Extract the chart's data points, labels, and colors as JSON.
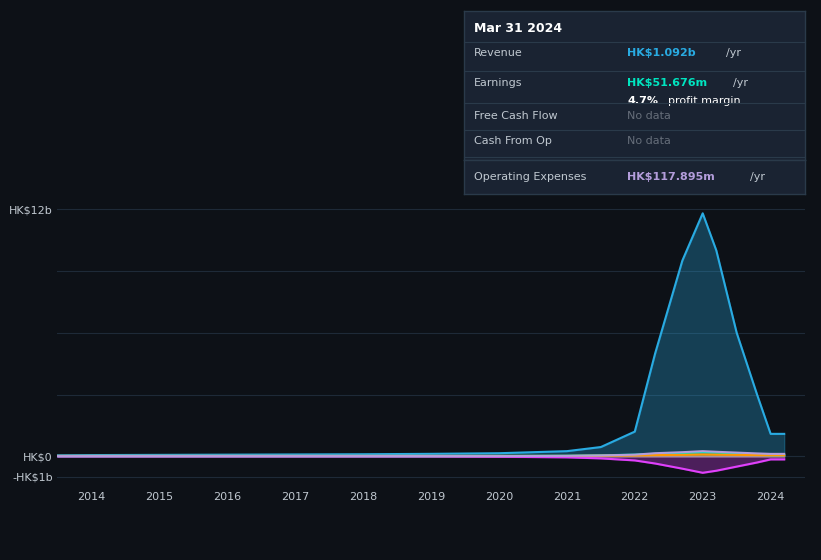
{
  "background_color": "#0d1117",
  "plot_bg_color": "#0d1117",
  "grid_color": "#1e2a38",
  "text_color": "#c0c8d0",
  "title_color": "#ffffff",
  "years": [
    2013.5,
    2014,
    2015,
    2016,
    2017,
    2018,
    2019,
    2020,
    2021,
    2021.5,
    2022,
    2022.3,
    2022.7,
    2023.0,
    2023.2,
    2023.5,
    2023.8,
    2024.0,
    2024.2
  ],
  "revenue": [
    0.05,
    0.06,
    0.07,
    0.08,
    0.09,
    0.1,
    0.12,
    0.15,
    0.25,
    0.45,
    1.2,
    5.0,
    9.5,
    11.8,
    10.0,
    6.0,
    3.0,
    1.09,
    1.09
  ],
  "earnings": [
    0.01,
    0.01,
    0.01,
    0.01,
    0.01,
    0.01,
    0.01,
    0.02,
    0.03,
    0.05,
    0.08,
    0.12,
    0.15,
    0.2,
    0.18,
    0.12,
    0.08,
    0.052,
    0.052
  ],
  "free_cash_flow": [
    0.0,
    0.0,
    0.0,
    0.0,
    0.0,
    0.0,
    0.0,
    -0.02,
    -0.05,
    -0.1,
    -0.2,
    -0.35,
    -0.6,
    -0.8,
    -0.7,
    -0.5,
    -0.3,
    -0.15,
    -0.15
  ],
  "cash_from_op": [
    0.02,
    0.02,
    0.02,
    0.02,
    0.02,
    0.02,
    0.02,
    0.02,
    0.02,
    0.03,
    0.04,
    0.06,
    0.07,
    0.09,
    0.08,
    0.07,
    0.06,
    0.05,
    0.05
  ],
  "operating_expenses": [
    0.01,
    0.01,
    0.01,
    0.01,
    0.01,
    0.01,
    0.01,
    0.01,
    0.02,
    0.04,
    0.08,
    0.15,
    0.2,
    0.25,
    0.22,
    0.18,
    0.14,
    0.118,
    0.118
  ],
  "revenue_color": "#29abe2",
  "earnings_color": "#00e5c0",
  "free_cash_flow_color": "#e040fb",
  "cash_from_op_color": "#ff9800",
  "operating_expenses_color": "#b39ddb",
  "ylim_min": -1.5,
  "ylim_max": 14.0,
  "xlim_min": 2013.5,
  "xlim_max": 2024.5,
  "xticks": [
    2014,
    2015,
    2016,
    2017,
    2018,
    2019,
    2020,
    2021,
    2022,
    2023,
    2024
  ],
  "tooltip_title": "Mar 31 2024",
  "tooltip_bg": "#1a2332",
  "tooltip_border": "#2a3a4a",
  "legend_labels": [
    "Revenue",
    "Earnings",
    "Free Cash Flow",
    "Cash From Op",
    "Operating Expenses"
  ],
  "legend_colors": [
    "#29abe2",
    "#00e5c0",
    "#e040fb",
    "#ff9800",
    "#b39ddb"
  ]
}
